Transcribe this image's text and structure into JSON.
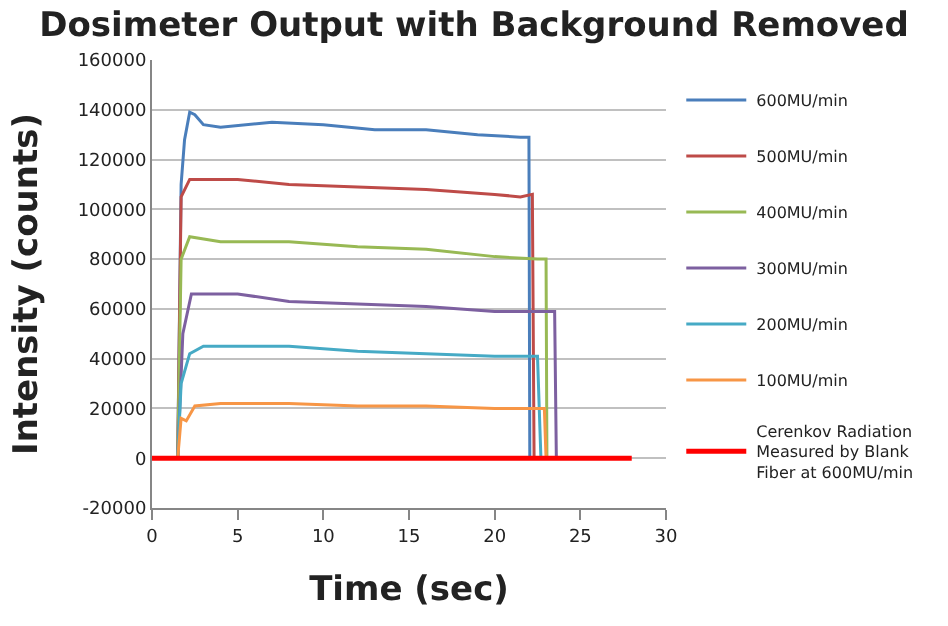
{
  "chart_data": {
    "type": "line",
    "title": "Dosimeter Output with Background Removed",
    "xlabel": "Time (sec)",
    "ylabel": "Intensity (counts)",
    "xlim": [
      0,
      30
    ],
    "xticks": [
      0,
      5,
      10,
      15,
      20,
      25,
      30
    ],
    "ylim": [
      -20000,
      160000
    ],
    "yticks": [
      -20000,
      0,
      20000,
      40000,
      60000,
      80000,
      100000,
      120000,
      140000,
      160000
    ],
    "grid": "y",
    "legend": "right",
    "marker": "none",
    "line_style": "solid",
    "series": [
      {
        "name": "600MU/min",
        "color": "#4a7ebb",
        "x": [
          1.5,
          1.7,
          1.9,
          2.2,
          2.5,
          3,
          4,
          7,
          10,
          13,
          16,
          19,
          21.5,
          22.0,
          22.05
        ],
        "values": [
          0,
          110000,
          128000,
          139000,
          138000,
          134000,
          133000,
          135000,
          134000,
          132000,
          132000,
          130000,
          129000,
          129000,
          0
        ]
      },
      {
        "name": "500MU/min",
        "color": "#be4b48",
        "x": [
          1.5,
          1.7,
          2.2,
          5,
          8,
          12,
          16,
          20,
          21.5,
          22.2,
          22.3
        ],
        "values": [
          0,
          105000,
          112000,
          112000,
          110000,
          109000,
          108000,
          106000,
          105000,
          106000,
          0
        ]
      },
      {
        "name": "400MU/min",
        "color": "#98b954",
        "x": [
          1.5,
          1.7,
          2.2,
          4,
          8,
          12,
          16,
          20,
          22.5,
          23.0,
          23.05
        ],
        "values": [
          0,
          80000,
          89000,
          87000,
          87000,
          85000,
          84000,
          81000,
          80000,
          80000,
          0
        ]
      },
      {
        "name": "300MU/min",
        "color": "#7d60a0",
        "x": [
          1.5,
          1.8,
          2.3,
          5,
          8,
          12,
          16,
          20,
          23.5,
          23.6
        ],
        "values": [
          0,
          50000,
          66000,
          66000,
          63000,
          62000,
          61000,
          59000,
          59000,
          0
        ]
      },
      {
        "name": "200MU/min",
        "color": "#46aac5",
        "x": [
          1.5,
          1.7,
          2.2,
          3,
          8,
          12,
          16,
          20,
          22.5,
          22.7
        ],
        "values": [
          0,
          30000,
          42000,
          45000,
          45000,
          43000,
          42000,
          41000,
          41000,
          0
        ]
      },
      {
        "name": "100MU/min",
        "color": "#f79646",
        "x": [
          1.5,
          1.7,
          2.0,
          2.5,
          4,
          8,
          12,
          16,
          20,
          22.9,
          23.0
        ],
        "values": [
          0,
          16000,
          15000,
          21000,
          22000,
          22000,
          21000,
          21000,
          20000,
          20000,
          0
        ]
      },
      {
        "name": "Cerenkov Radiation Measured by Blank Fiber at 600MU/min",
        "color": "#ff0000",
        "x": [
          0,
          28
        ],
        "values": [
          0,
          0
        ]
      }
    ]
  }
}
